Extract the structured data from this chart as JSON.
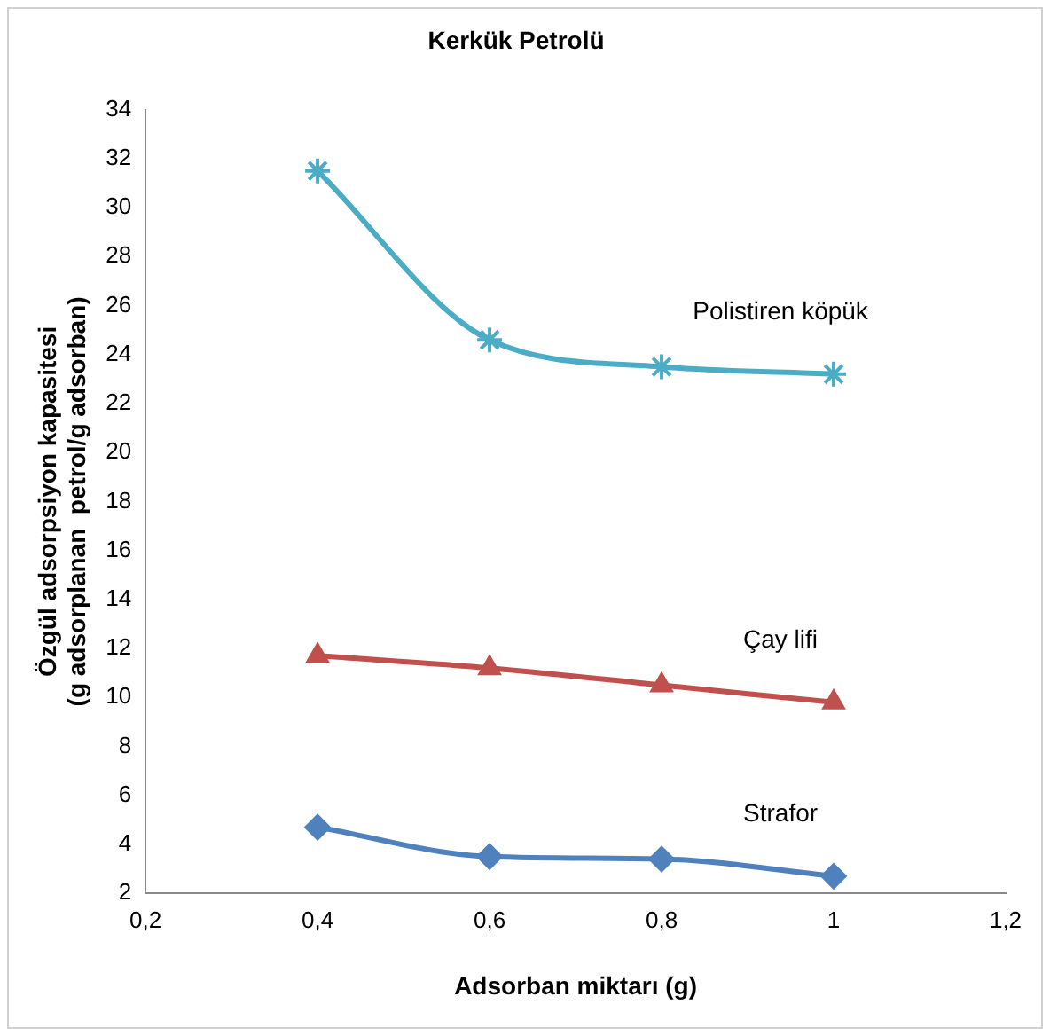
{
  "chart_data": {
    "type": "line",
    "title": "Kerkük Petrolü",
    "xlabel": "Adsorban miktarı (g)",
    "ylabel": "Özgül adsorpsiyon kapasitesi\n(g adsorplanan  petrol/g adsorban)",
    "x": [
      0.4,
      0.6,
      0.8,
      1
    ],
    "series": [
      {
        "name": "Polistiren köpük",
        "color": "#4bacc6",
        "marker": "cross",
        "values": [
          31.5,
          24.6,
          23.5,
          23.2
        ]
      },
      {
        "name": "Çay lifi",
        "color": "#c0504d",
        "marker": "triangle",
        "values": [
          11.7,
          11.2,
          10.5,
          9.8
        ]
      },
      {
        "name": "Strafor",
        "color": "#4f81bd",
        "marker": "diamond",
        "values": [
          4.7,
          3.5,
          3.4,
          2.7
        ]
      }
    ],
    "xlim": [
      0.2,
      1.2
    ],
    "xticks": [
      {
        "value": 0.2,
        "label": "0,2"
      },
      {
        "value": 0.4,
        "label": "0,4"
      },
      {
        "value": 0.6,
        "label": "0,6"
      },
      {
        "value": 0.8,
        "label": "0,8"
      },
      {
        "value": 1,
        "label": "1"
      },
      {
        "value": 1.2,
        "label": "1,2"
      }
    ],
    "ylim": [
      2,
      34
    ],
    "yticks": [
      2,
      4,
      6,
      8,
      10,
      12,
      14,
      16,
      18,
      20,
      22,
      24,
      26,
      28,
      30,
      32,
      34
    ],
    "grid": false,
    "legend": false,
    "line_style": "solid"
  }
}
